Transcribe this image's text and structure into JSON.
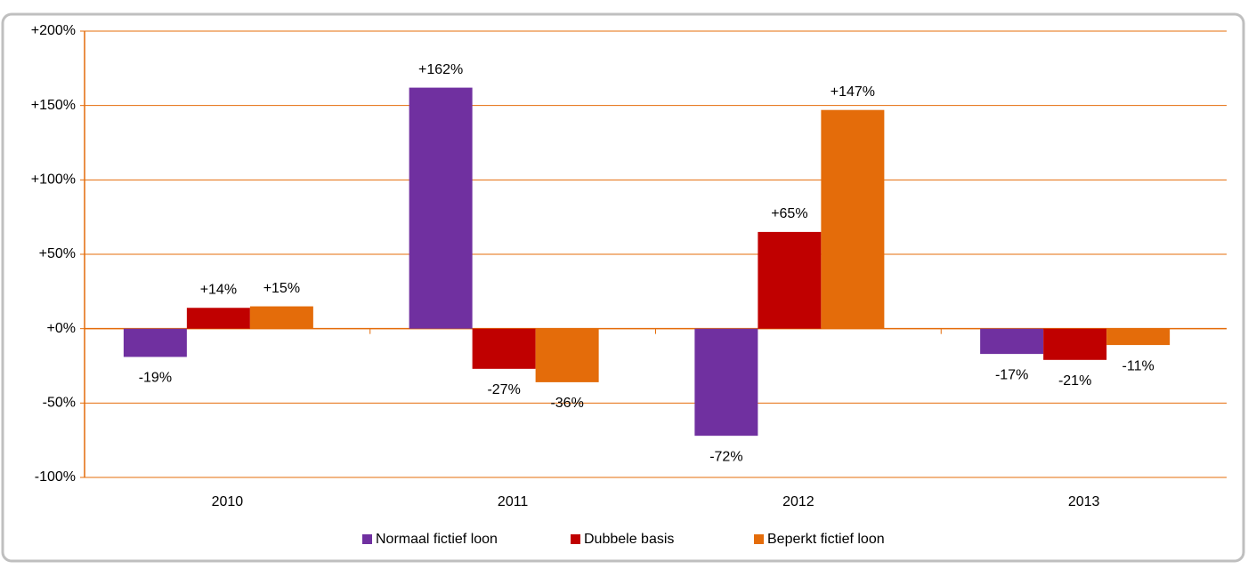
{
  "chart_data": {
    "type": "bar",
    "categories": [
      "2010",
      "2011",
      "2012",
      "2013"
    ],
    "series": [
      {
        "name": "Normaal fictief loon",
        "color": "#7030a0",
        "values": [
          -19,
          162,
          -72,
          -17
        ],
        "value_labels": [
          "-19%",
          "+162%",
          "-72%",
          "-17%"
        ]
      },
      {
        "name": "Dubbele basis",
        "color": "#c00000",
        "values": [
          14,
          -27,
          65,
          -21
        ],
        "value_labels": [
          "+14%",
          "-27%",
          "+65%",
          "-21%"
        ]
      },
      {
        "name": "Beperkt fictief loon",
        "color": "#e46c0a",
        "values": [
          15,
          -36,
          147,
          -11
        ],
        "value_labels": [
          "+15%",
          "-36%",
          "+147%",
          "-11%"
        ]
      }
    ],
    "ylim": [
      -100,
      200
    ],
    "yticks": [
      {
        "value": -100,
        "label": "-100%"
      },
      {
        "value": -50,
        "label": "-50%"
      },
      {
        "value": 0,
        "label": "+0%"
      },
      {
        "value": 50,
        "label": "+50%"
      },
      {
        "value": 100,
        "label": "+100%"
      },
      {
        "value": 150,
        "label": "+150%"
      },
      {
        "value": 200,
        "label": "+200%"
      }
    ],
    "grid": true,
    "legend": "bottom"
  }
}
